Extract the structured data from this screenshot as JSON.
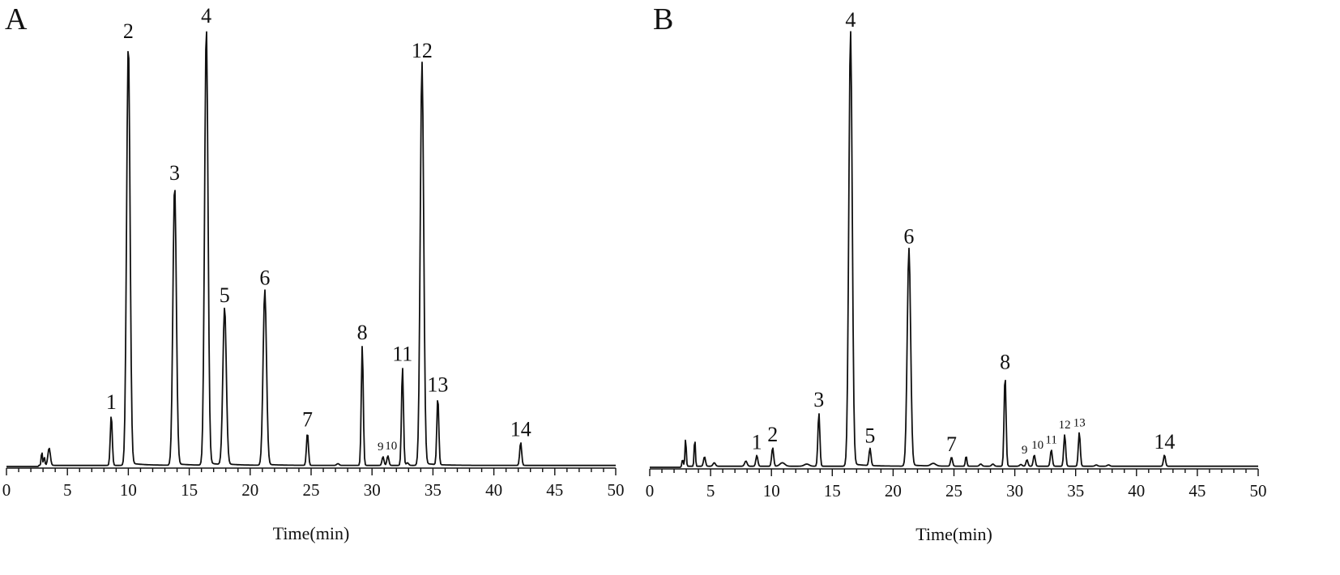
{
  "chart_data": [
    {
      "type": "line",
      "panel_label": "A",
      "xlabel": "Time(min)",
      "ylabel": "",
      "xlim": [
        0,
        50
      ],
      "ylim": [
        0,
        100
      ],
      "x_ticks": [
        "0",
        "5",
        "10",
        "15",
        "20",
        "25",
        "30",
        "35",
        "40",
        "45",
        "50"
      ],
      "peaks": [
        {
          "label": "1",
          "x": 8.6,
          "y": 11.5
        },
        {
          "label": "2",
          "x": 10.0,
          "y": 96.5
        },
        {
          "label": "3",
          "x": 13.8,
          "y": 64.0
        },
        {
          "label": "4",
          "x": 16.4,
          "y": 100.0
        },
        {
          "label": "5",
          "x": 17.9,
          "y": 36.0
        },
        {
          "label": "6",
          "x": 21.2,
          "y": 40.0
        },
        {
          "label": "7",
          "x": 24.7,
          "y": 7.5
        },
        {
          "label": "8",
          "x": 29.2,
          "y": 27.5
        },
        {
          "label": "9",
          "x": 30.9,
          "y": 2.0
        },
        {
          "label": "10",
          "x": 31.3,
          "y": 2.2
        },
        {
          "label": "11",
          "x": 32.5,
          "y": 22.5
        },
        {
          "label": "12",
          "x": 34.1,
          "y": 92.0
        },
        {
          "label": "13",
          "x": 35.4,
          "y": 15.5
        },
        {
          "label": "14",
          "x": 42.2,
          "y": 5.3
        }
      ]
    },
    {
      "type": "line",
      "panel_label": "B",
      "xlabel": "Time(min)",
      "ylabel": "",
      "xlim": [
        0,
        50
      ],
      "ylim": [
        0,
        100
      ],
      "x_ticks": [
        "0",
        "5",
        "10",
        "15",
        "20",
        "25",
        "30",
        "35",
        "40",
        "45",
        "50"
      ],
      "peaks": [
        {
          "label": "1",
          "x": 8.8,
          "y": 2.5
        },
        {
          "label": "2",
          "x": 10.1,
          "y": 4.3
        },
        {
          "label": "3",
          "x": 13.9,
          "y": 12.3
        },
        {
          "label": "4",
          "x": 16.5,
          "y": 100.0
        },
        {
          "label": "5",
          "x": 18.1,
          "y": 4.0
        },
        {
          "label": "6",
          "x": 21.3,
          "y": 50.0
        },
        {
          "label": "7",
          "x": 24.8,
          "y": 2.1
        },
        {
          "label": "8",
          "x": 29.2,
          "y": 21.0
        },
        {
          "label": "9",
          "x": 31.0,
          "y": 1.5
        },
        {
          "label": "10",
          "x": 31.6,
          "y": 2.6
        },
        {
          "label": "11",
          "x": 33.0,
          "y": 3.8
        },
        {
          "label": "12",
          "x": 34.1,
          "y": 7.3
        },
        {
          "label": "13",
          "x": 35.3,
          "y": 7.8
        },
        {
          "label": "14",
          "x": 42.3,
          "y": 2.6
        }
      ]
    }
  ]
}
